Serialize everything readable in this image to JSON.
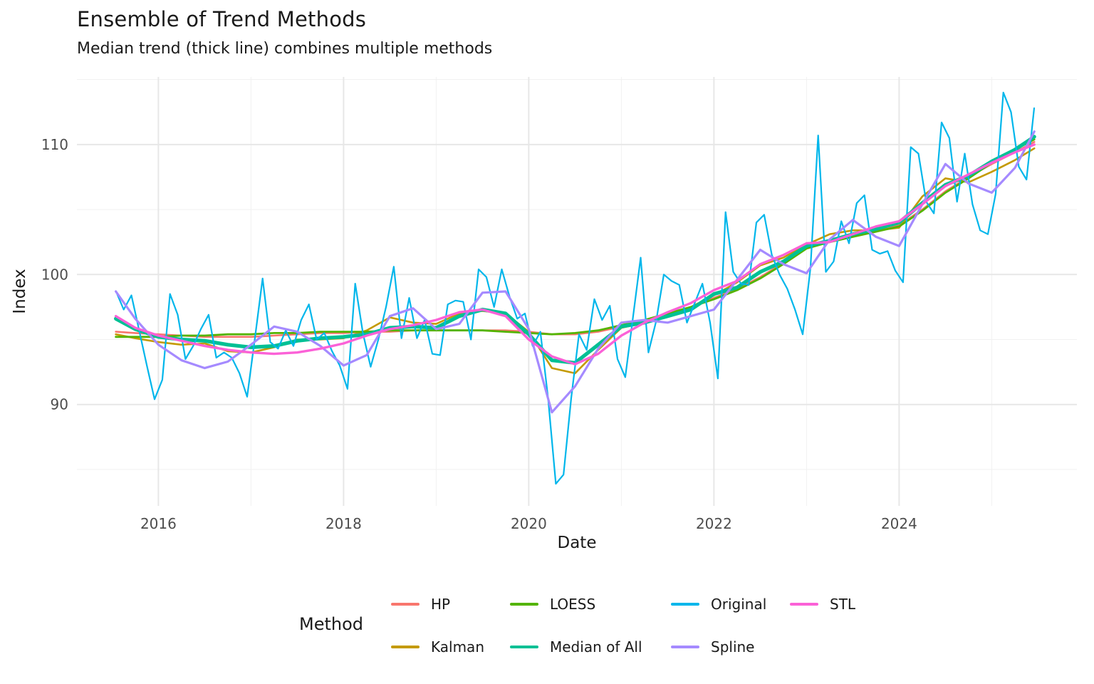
{
  "chart_data": {
    "type": "line",
    "title": "Ensemble of Trend Methods",
    "subtitle": "Median trend (thick line) combines multiple methods",
    "xlabel": "Date",
    "ylabel": "Index",
    "legend_title": "Method",
    "legend_position": "bottom",
    "grid": true,
    "background": "#ffffff",
    "grid_major_color": "#e7e7e7",
    "grid_minor_color": "#f1f1f1",
    "tick_label_color": "#4d4d4d",
    "x_range": [
      2015.12,
      2025.92
    ],
    "y_range": [
      82.2,
      115.2
    ],
    "x_ticks": [
      2016,
      2018,
      2020,
      2022,
      2024
    ],
    "x_minor_ticks": [
      2017,
      2019,
      2021,
      2023,
      2025
    ],
    "y_ticks": [
      90,
      100,
      110
    ],
    "y_minor_ticks": [
      85,
      95,
      105,
      115
    ],
    "original_x_start": 2015.542,
    "original_x_step_years": 0.083333,
    "smooth_x": [
      2015.54,
      2015.75,
      2016.0,
      2016.25,
      2016.5,
      2016.75,
      2017.0,
      2017.25,
      2017.5,
      2017.75,
      2018.0,
      2018.25,
      2018.5,
      2018.75,
      2019.0,
      2019.25,
      2019.5,
      2019.75,
      2020.0,
      2020.25,
      2020.5,
      2020.75,
      2021.0,
      2021.25,
      2021.5,
      2021.75,
      2022.0,
      2022.25,
      2022.5,
      2022.75,
      2023.0,
      2023.25,
      2023.5,
      2023.75,
      2024.0,
      2024.25,
      2024.5,
      2024.75,
      2025.0,
      2025.25,
      2025.46
    ],
    "series": [
      {
        "name": "HP",
        "color": "#F8766D",
        "width": 2.6,
        "x_mode": "smooth",
        "values": [
          95.6,
          95.5,
          95.4,
          95.3,
          95.2,
          95.2,
          95.2,
          95.3,
          95.4,
          95.5,
          95.5,
          95.6,
          95.6,
          95.7,
          95.7,
          95.7,
          95.7,
          95.7,
          95.6,
          95.4,
          95.4,
          95.6,
          96.0,
          96.4,
          96.9,
          97.5,
          98.2,
          98.9,
          99.8,
          100.9,
          102.1,
          102.6,
          103.0,
          103.3,
          103.8,
          105.0,
          106.4,
          107.5,
          108.5,
          109.4,
          110.2
        ]
      },
      {
        "name": "Kalman",
        "color": "#C49A00",
        "width": 2.6,
        "x_mode": "smooth",
        "values": [
          95.4,
          95.1,
          94.8,
          94.6,
          94.7,
          94.1,
          94.0,
          94.4,
          95.0,
          95.0,
          95.1,
          95.7,
          96.7,
          96.3,
          96.2,
          97.0,
          97.2,
          97.0,
          95.6,
          92.8,
          92.4,
          94.2,
          95.9,
          96.3,
          96.9,
          97.5,
          98.4,
          99.4,
          100.7,
          101.3,
          102.3,
          103.1,
          103.4,
          103.4,
          103.6,
          106.0,
          107.4,
          107.1,
          107.9,
          108.8,
          109.7
        ]
      },
      {
        "name": "LOESS",
        "color": "#53B400",
        "width": 2.8,
        "x_mode": "smooth",
        "values": [
          95.2,
          95.2,
          95.2,
          95.3,
          95.3,
          95.4,
          95.4,
          95.5,
          95.5,
          95.6,
          95.6,
          95.6,
          95.7,
          95.7,
          95.7,
          95.7,
          95.7,
          95.6,
          95.5,
          95.4,
          95.5,
          95.7,
          96.1,
          96.5,
          97.0,
          97.5,
          98.1,
          98.8,
          99.7,
          100.8,
          102.0,
          102.5,
          102.9,
          103.3,
          103.7,
          104.9,
          106.3,
          107.4,
          108.6,
          109.6,
          110.4
        ]
      },
      {
        "name": "Median of All",
        "color": "#00C094",
        "width": 5.2,
        "x_mode": "smooth",
        "values": [
          96.6,
          95.8,
          95.2,
          95.0,
          94.9,
          94.6,
          94.4,
          94.5,
          94.9,
          95.1,
          95.2,
          95.4,
          95.9,
          96.0,
          95.9,
          96.8,
          97.3,
          97.0,
          95.4,
          93.4,
          93.2,
          94.6,
          96.0,
          96.3,
          96.8,
          97.3,
          98.5,
          99.0,
          100.2,
          101.0,
          102.2,
          102.6,
          103.1,
          103.5,
          104.0,
          105.5,
          106.9,
          107.6,
          108.7,
          109.6,
          110.6
        ]
      },
      {
        "name": "Original",
        "color": "#00B6EB",
        "width": 2.2,
        "x_mode": "monthly",
        "values": [
          98.7,
          97.3,
          98.4,
          95.7,
          93.0,
          90.4,
          91.9,
          98.5,
          96.9,
          93.5,
          94.5,
          95.8,
          96.9,
          93.6,
          94.0,
          93.6,
          92.4,
          90.6,
          95.1,
          99.7,
          94.8,
          94.3,
          95.7,
          94.5,
          96.5,
          97.7,
          95.0,
          95.5,
          94.1,
          93.0,
          91.2,
          99.3,
          95.5,
          92.9,
          95.0,
          97.5,
          100.6,
          95.1,
          98.2,
          95.1,
          96.5,
          93.9,
          93.8,
          97.7,
          98.0,
          97.9,
          95.0,
          100.4,
          99.8,
          97.5,
          100.4,
          98.3,
          96.6,
          97.0,
          94.5,
          95.6,
          90.5,
          83.9,
          84.6,
          90.5,
          95.4,
          94.2,
          98.1,
          96.5,
          97.6,
          93.5,
          92.1,
          96.7,
          101.3,
          94.0,
          96.4,
          100.0,
          99.5,
          99.2,
          96.3,
          97.8,
          99.3,
          96.3,
          92.0,
          104.8,
          100.2,
          99.3,
          99.2,
          104.0,
          104.6,
          101.5,
          100.0,
          98.9,
          97.3,
          95.4,
          100.5,
          110.7,
          100.2,
          101.0,
          104.1,
          102.4,
          105.5,
          106.1,
          101.9,
          101.6,
          101.8,
          100.3,
          99.4,
          109.8,
          109.3,
          105.6,
          104.7,
          111.7,
          110.5,
          105.6,
          109.3,
          105.4,
          103.4,
          103.1,
          106.2,
          114.0,
          112.5,
          108.3,
          107.3,
          112.8
        ]
      },
      {
        "name": "Spline",
        "color": "#A58AFF",
        "width": 3.2,
        "x_mode": "smooth",
        "values": [
          98.7,
          96.6,
          94.6,
          93.4,
          92.8,
          93.3,
          94.6,
          96.0,
          95.6,
          94.5,
          93.0,
          93.8,
          96.8,
          97.4,
          95.8,
          96.2,
          98.6,
          98.7,
          95.8,
          89.4,
          91.4,
          94.3,
          96.3,
          96.5,
          96.3,
          96.8,
          97.3,
          99.6,
          101.9,
          100.8,
          100.1,
          102.7,
          104.2,
          102.9,
          102.2,
          105.4,
          108.5,
          107.0,
          106.3,
          108.2,
          111.0
        ]
      },
      {
        "name": "STL",
        "color": "#FB61D7",
        "width": 3.4,
        "x_mode": "smooth",
        "values": [
          96.8,
          95.9,
          95.3,
          94.9,
          94.5,
          94.2,
          94.0,
          93.9,
          94.0,
          94.3,
          94.7,
          95.3,
          95.8,
          96.1,
          96.5,
          97.1,
          97.3,
          96.8,
          95.0,
          93.7,
          93.1,
          93.9,
          95.3,
          96.3,
          97.1,
          97.8,
          98.8,
          99.5,
          100.8,
          101.5,
          102.4,
          102.5,
          103.1,
          103.7,
          104.1,
          105.4,
          106.8,
          107.7,
          108.6,
          109.4,
          110.0
        ]
      }
    ],
    "legend_columns": [
      [
        0,
        1
      ],
      [
        2,
        3
      ],
      [
        4,
        5
      ],
      [
        6
      ]
    ]
  }
}
